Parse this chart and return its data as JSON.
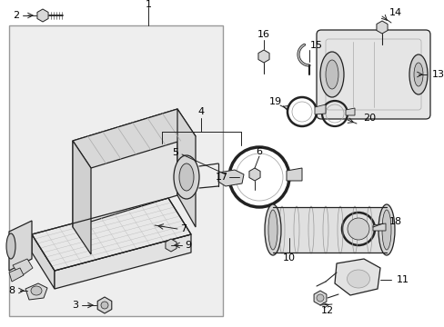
{
  "bg_color": "#ffffff",
  "line_color": "#222222",
  "fill_light": "#f0f0f0",
  "fill_mid": "#e0e0e0",
  "fill_dark": "#cccccc",
  "box_fill": "#ebebeb",
  "box_border": "#888888",
  "label_color": "#000000"
}
